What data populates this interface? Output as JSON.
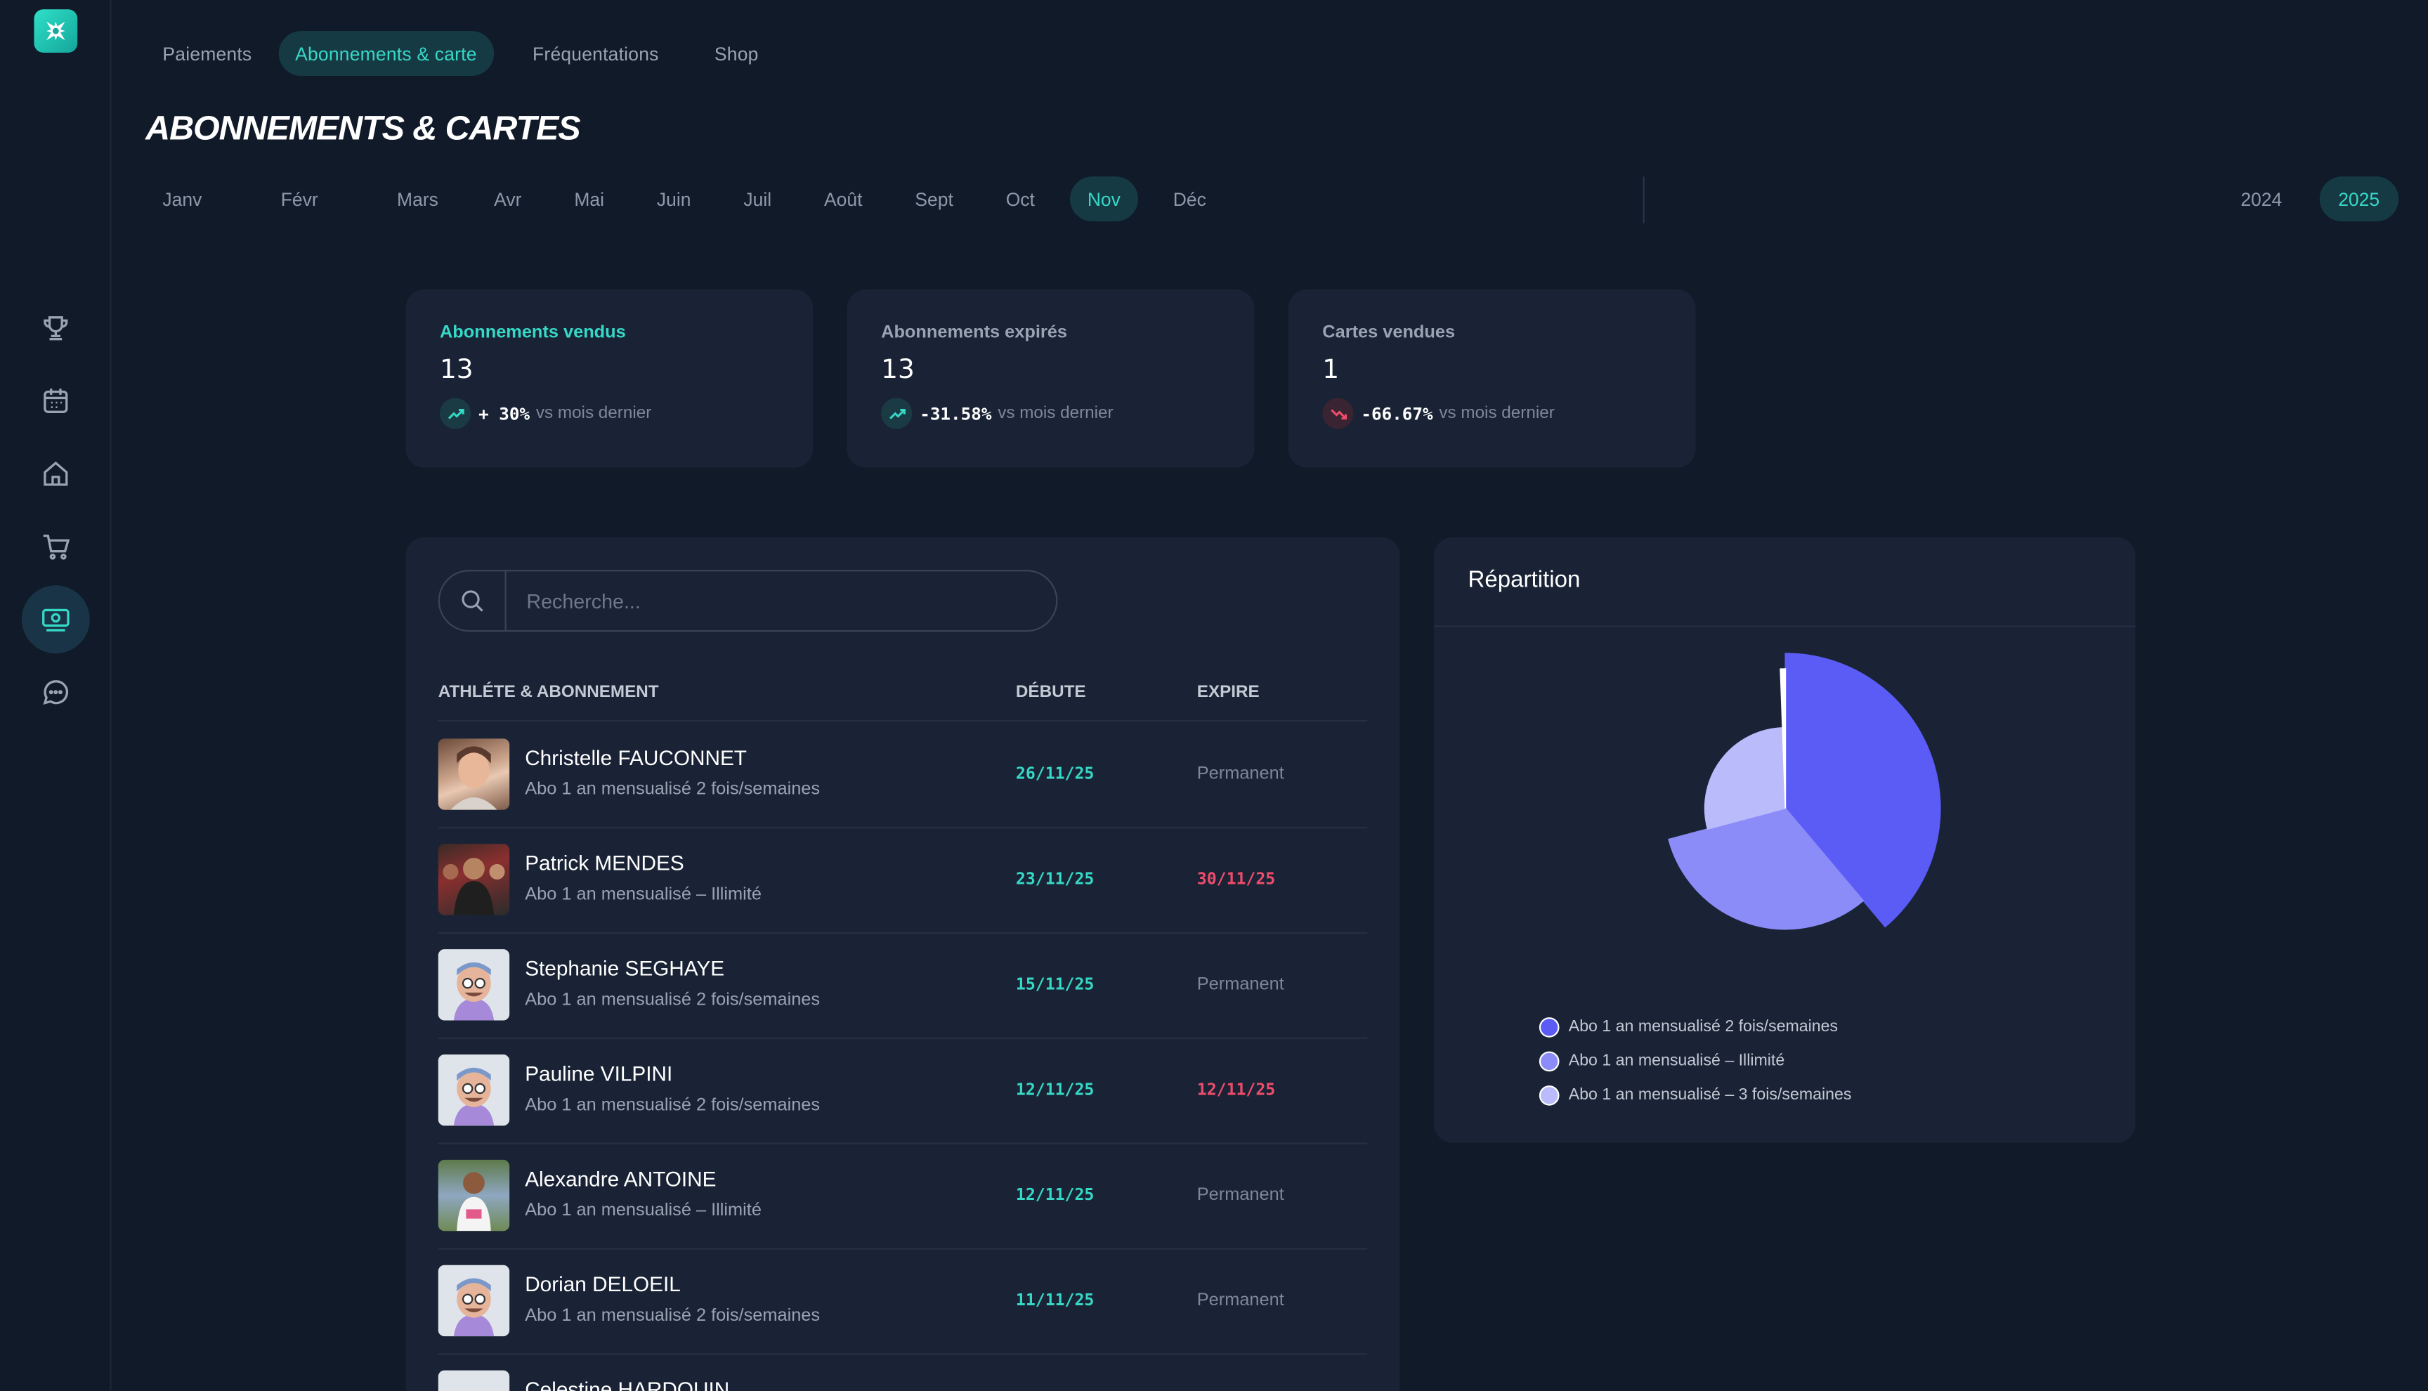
{
  "topnav": [
    "Paiements",
    "Abonnements & carte",
    "Fréquentations",
    "Shop"
  ],
  "topnav_active": 1,
  "page_title": "ABONNEMENTS & CARTES",
  "months": [
    "Janv",
    "Févr",
    "Mars",
    "Avr",
    "Mai",
    "Juin",
    "Juil",
    "Août",
    "Sept",
    "Oct",
    "Nov",
    "Déc"
  ],
  "month_active": 10,
  "years": [
    "2024",
    "2025"
  ],
  "year_active": 1,
  "stats": [
    {
      "title": "Abonnements vendus",
      "value": "13",
      "pct": "+ 30%",
      "trend": "up",
      "text": "vs mois dernier"
    },
    {
      "title": "Abonnements expirés",
      "value": "13",
      "pct": "-31.58%",
      "trend": "up",
      "text": "vs mois dernier"
    },
    {
      "title": "Cartes vendues",
      "value": "1",
      "pct": "-66.67%",
      "trend": "down",
      "text": "vs mois dernier"
    }
  ],
  "search": {
    "placeholder": "Recherche..."
  },
  "table": {
    "headers": [
      "ATHLÉTE & ABONNEMENT",
      "DÉBUTE",
      "EXPIRE"
    ],
    "rows": [
      {
        "name": "Christelle FAUCONNET",
        "sub": "Abo 1 an mensualisé 2 fois/semaines",
        "start": "26/11/25",
        "expire": "Permanent",
        "expired": false
      },
      {
        "name": "Patrick MENDES",
        "sub": "Abo 1 an mensualisé – Illimité",
        "start": "23/11/25",
        "expire": "30/11/25",
        "expired": true
      },
      {
        "name": "Stephanie SEGHAYE",
        "sub": "Abo 1 an mensualisé 2 fois/semaines",
        "start": "15/11/25",
        "expire": "Permanent",
        "expired": false
      },
      {
        "name": "Pauline VILPINI",
        "sub": "Abo 1 an mensualisé 2 fois/semaines",
        "start": "12/11/25",
        "expire": "12/11/25",
        "expired": true
      },
      {
        "name": "Alexandre ANTOINE",
        "sub": "Abo 1 an mensualisé – Illimité",
        "start": "12/11/25",
        "expire": "Permanent",
        "expired": false
      },
      {
        "name": "Dorian DELOEIL",
        "sub": "Abo 1 an mensualisé 2 fois/semaines",
        "start": "11/11/25",
        "expire": "Permanent",
        "expired": false
      },
      {
        "name": "Celestine HARDOUIN",
        "sub": "",
        "start": "",
        "expire": "",
        "expired": false
      }
    ]
  },
  "repartition": {
    "title": "Répartition",
    "legend": [
      {
        "label": "Abo 1 an mensualisé 2 fois/semaines",
        "color": "#5b5cf6"
      },
      {
        "label": "Abo 1 an mensualisé – Illimité",
        "color": "#8b8cf8"
      },
      {
        "label": "Abo 1 an mensualisé – 3 fois/semaines",
        "color": "#babbfb"
      }
    ]
  },
  "chart_data": {
    "type": "pie",
    "title": "Répartition",
    "categories": [
      "Abo 1 an mensualisé 2 fois/semaines",
      "Abo 1 an mensualisé – Illimité",
      "Abo 1 an mensualisé – 3 fois/semaines",
      ""
    ],
    "values": [
      34,
      28,
      25,
      0.5
    ],
    "colors": [
      "#5b5cf6",
      "#8b8cf8",
      "#babbfb",
      "#ffffff"
    ]
  }
}
